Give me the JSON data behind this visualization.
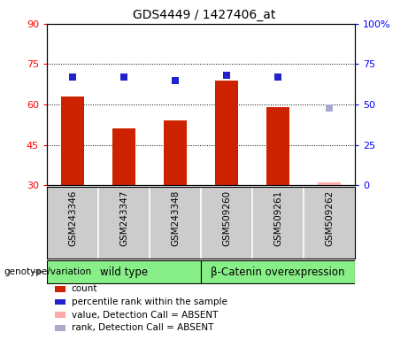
{
  "title": "GDS4449 / 1427406_at",
  "samples": [
    "GSM243346",
    "GSM243347",
    "GSM243348",
    "GSM509260",
    "GSM509261",
    "GSM509262"
  ],
  "bar_values": [
    63.0,
    51.0,
    54.0,
    69.0,
    59.0,
    31.0
  ],
  "bar_absent": [
    false,
    false,
    false,
    false,
    false,
    true
  ],
  "rank_values": [
    67.0,
    67.0,
    65.0,
    68.0,
    67.0,
    48.0
  ],
  "rank_absent": [
    false,
    false,
    false,
    false,
    false,
    true
  ],
  "bar_color": "#cc2200",
  "bar_absent_color": "#ffaaaa",
  "rank_color": "#2222cc",
  "rank_absent_color": "#aaaacc",
  "left_ylim": [
    30,
    90
  ],
  "right_ylim": [
    0,
    100
  ],
  "left_yticks": [
    30,
    45,
    60,
    75,
    90
  ],
  "right_yticks": [
    0,
    25,
    50,
    75,
    100
  ],
  "right_yticklabels": [
    "0",
    "25",
    "50",
    "75",
    "100%"
  ],
  "group1_label": "wild type",
  "group1_color": "#88ee88",
  "group2_label": "β-Catenin overexpression",
  "group2_color": "#88ee88",
  "genotype_label": "genotype/variation",
  "sample_bg_color": "#cccccc",
  "plot_bg": "#ffffff",
  "legend_items": [
    {
      "label": "count",
      "color": "#cc2200"
    },
    {
      "label": "percentile rank within the sample",
      "color": "#2222cc"
    },
    {
      "label": "value, Detection Call = ABSENT",
      "color": "#ffaaaa"
    },
    {
      "label": "rank, Detection Call = ABSENT",
      "color": "#aaaacc"
    }
  ]
}
